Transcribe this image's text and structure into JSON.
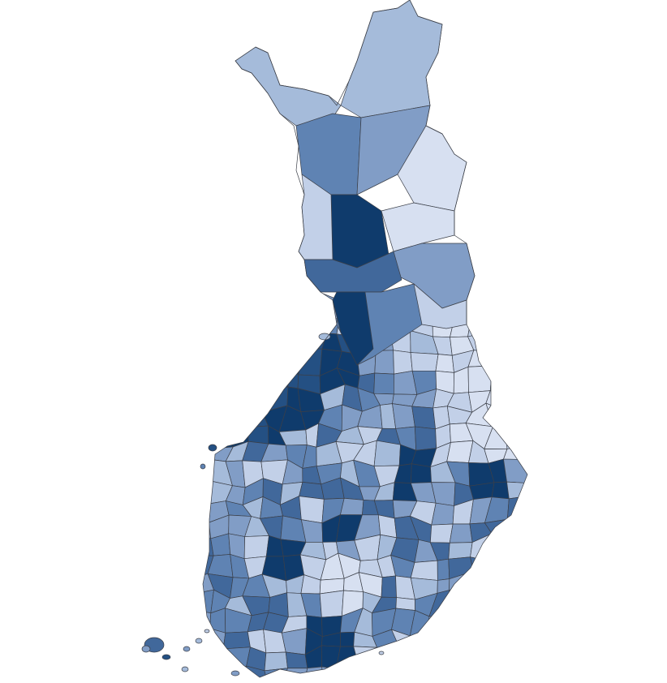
{
  "map": {
    "colors": [
      "#d7e0f1",
      "#c2d0e8",
      "#a5bbda",
      "#819dc6",
      "#5f83b3",
      "#41689b",
      "#245083",
      "#0f3b6c"
    ],
    "stroke": "#3b3f48"
  }
}
